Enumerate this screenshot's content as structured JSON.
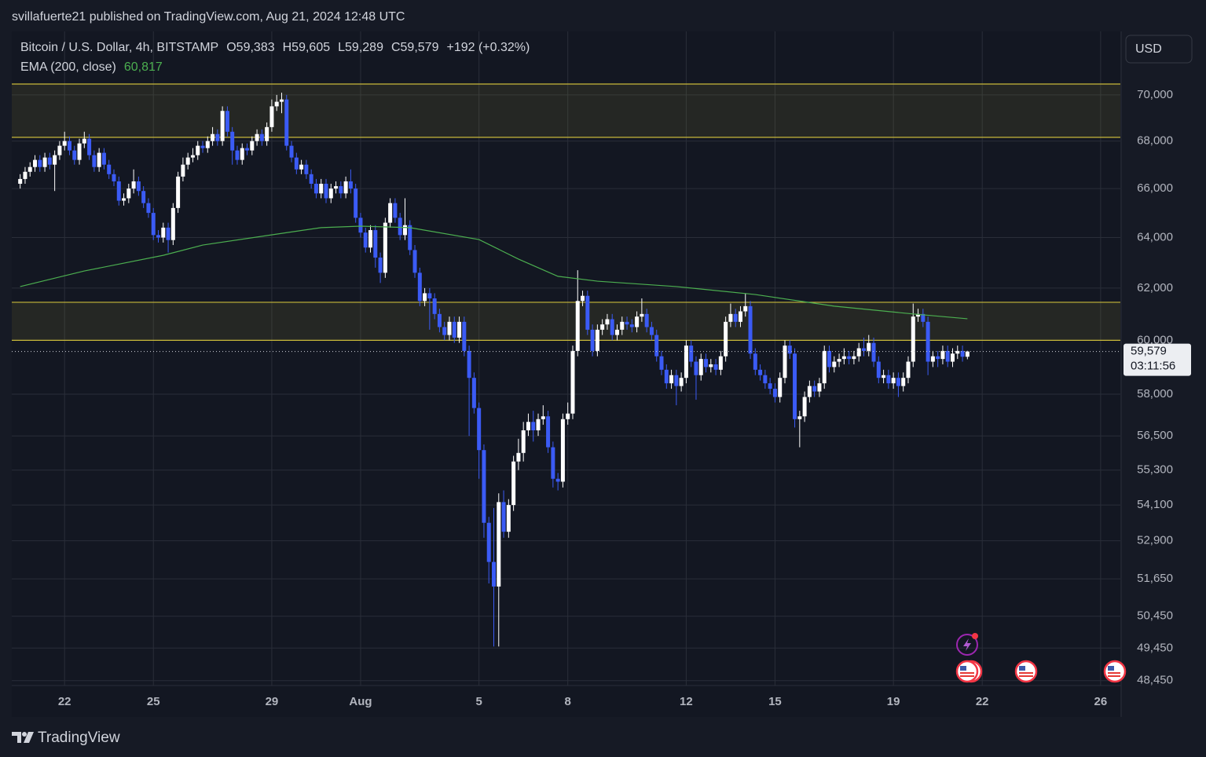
{
  "chart_data": {
    "type": "candlestick",
    "publisher_line": "svillafuerte21 published on TradingView.com, Aug 21, 2024 12:48 UTC",
    "symbol": "Bitcoin / U.S. Dollar, 4h, BITSTAMP",
    "legend_values": [
      "O59,383",
      "H59,605",
      "L59,289",
      "C59,579",
      "+192 (+0.32%)"
    ],
    "currency": "USD",
    "footer": "TradingView",
    "log_scale": true,
    "grid": true,
    "up_color": "#ffffff",
    "down_color": "#3b5bf5",
    "ylim": [
      48300,
      72850
    ],
    "xlim": [
      -1.7,
      223
    ],
    "yticks": [
      {
        "value": 70000,
        "label": "70,000"
      },
      {
        "value": 68000,
        "label": "68,000"
      },
      {
        "value": 66000,
        "label": "66,000"
      },
      {
        "value": 64000,
        "label": "64,000"
      },
      {
        "value": 62000,
        "label": "62,000"
      },
      {
        "value": 60000,
        "label": "60,000"
      },
      {
        "value": 58000,
        "label": "58,000"
      },
      {
        "value": 56500,
        "label": "56,500"
      },
      {
        "value": 55300,
        "label": "55,300"
      },
      {
        "value": 54100,
        "label": "54,100"
      },
      {
        "value": 52900,
        "label": "52,900"
      },
      {
        "value": 51650,
        "label": "51,650"
      },
      {
        "value": 50450,
        "label": "50,450"
      },
      {
        "value": 49450,
        "label": "49,450"
      },
      {
        "value": 48450,
        "label": "48,450"
      }
    ],
    "xticks": [
      {
        "value": 9,
        "label": "22"
      },
      {
        "value": 27,
        "label": "25"
      },
      {
        "value": 51,
        "label": "29"
      },
      {
        "value": 69,
        "label": "Aug"
      },
      {
        "value": 93,
        "label": "5"
      },
      {
        "value": 111,
        "label": "8"
      },
      {
        "value": 135,
        "label": "12"
      },
      {
        "value": 153,
        "label": "15"
      },
      {
        "value": 177,
        "label": "19"
      },
      {
        "value": 195,
        "label": "22"
      },
      {
        "value": 219,
        "label": "26"
      }
    ],
    "zones": [
      [
        60000,
        61450
      ],
      [
        68160,
        70480
      ]
    ],
    "zone_color": "#c9b93a",
    "ema": {
      "name": "EMA (200, close)",
      "value_label": "60,817",
      "color": "#4caf50",
      "x": [
        0,
        13,
        29,
        37,
        52,
        61,
        69,
        79,
        93,
        101,
        109,
        117,
        133,
        149,
        165,
        181,
        192
      ],
      "values": [
        62060,
        62670,
        63290,
        63700,
        64140,
        64400,
        64460,
        64400,
        63920,
        63140,
        62460,
        62270,
        62060,
        61750,
        61300,
        61000,
        60817
      ]
    },
    "last_price": {
      "value": 59579,
      "label": "59,579"
    },
    "countdown": "03:11:56",
    "candles": [
      [
        66200,
        66600,
        66000,
        66400
      ],
      [
        66400,
        66900,
        66200,
        66700
      ],
      [
        66700,
        67100,
        66500,
        66900
      ],
      [
        66900,
        67400,
        66700,
        67200
      ],
      [
        67200,
        67400,
        66700,
        66900
      ],
      [
        66900,
        67500,
        66700,
        67300
      ],
      [
        67300,
        67500,
        66800,
        67000
      ],
      [
        67000,
        67600,
        65900,
        67400
      ],
      [
        67400,
        68000,
        67200,
        67800
      ],
      [
        67800,
        68400,
        67600,
        68000
      ],
      [
        68000,
        68200,
        67400,
        67600
      ],
      [
        67600,
        67800,
        67000,
        67200
      ],
      [
        67200,
        68100,
        67000,
        67900
      ],
      [
        67900,
        68400,
        67700,
        68100
      ],
      [
        68100,
        68300,
        67200,
        67400
      ],
      [
        67400,
        67600,
        66700,
        66900
      ],
      [
        66900,
        67700,
        66700,
        67500
      ],
      [
        67500,
        67700,
        66800,
        67000
      ],
      [
        67000,
        67200,
        66400,
        66600
      ],
      [
        66600,
        66800,
        66100,
        66300
      ],
      [
        66300,
        66500,
        65300,
        65500
      ],
      [
        65500,
        65800,
        65300,
        65600
      ],
      [
        65600,
        66200,
        65400,
        66000
      ],
      [
        66000,
        66800,
        65800,
        66300
      ],
      [
        66300,
        66500,
        65700,
        65900
      ],
      [
        65900,
        66100,
        65200,
        65400
      ],
      [
        65400,
        65600,
        64800,
        65000
      ],
      [
        65000,
        65200,
        63900,
        64100
      ],
      [
        64100,
        64300,
        63800,
        64000
      ],
      [
        64000,
        64600,
        63800,
        64400
      ],
      [
        64400,
        64600,
        63400,
        63900
      ],
      [
        63900,
        65400,
        63700,
        65200
      ],
      [
        65200,
        66700,
        65000,
        66500
      ],
      [
        66500,
        67300,
        66300,
        67000
      ],
      [
        67000,
        67500,
        66800,
        67300
      ],
      [
        67300,
        67700,
        67100,
        67400
      ],
      [
        67400,
        68000,
        67200,
        67800
      ],
      [
        67800,
        68000,
        67500,
        67700
      ],
      [
        67700,
        68200,
        67500,
        68000
      ],
      [
        68000,
        68600,
        67800,
        68300
      ],
      [
        68300,
        68500,
        67800,
        68000
      ],
      [
        68000,
        69500,
        67800,
        69300
      ],
      [
        69300,
        69500,
        68200,
        68400
      ],
      [
        68400,
        68600,
        67000,
        67600
      ],
      [
        67600,
        67800,
        67000,
        67200
      ],
      [
        67200,
        67900,
        67000,
        67700
      ],
      [
        67700,
        67900,
        67400,
        67600
      ],
      [
        67600,
        68200,
        67400,
        68000
      ],
      [
        68000,
        68500,
        67800,
        68300
      ],
      [
        68300,
        68500,
        67800,
        68000
      ],
      [
        68000,
        68800,
        67800,
        68600
      ],
      [
        68600,
        69800,
        68400,
        69500
      ],
      [
        69500,
        70000,
        69300,
        69700
      ],
      [
        69700,
        70100,
        69200,
        69800
      ],
      [
        69800,
        70000,
        67600,
        67800
      ],
      [
        67800,
        68000,
        67100,
        67300
      ],
      [
        67300,
        67500,
        66600,
        66800
      ],
      [
        66800,
        67200,
        66600,
        67000
      ],
      [
        67000,
        67200,
        66400,
        66600
      ],
      [
        66600,
        66800,
        66000,
        66200
      ],
      [
        66200,
        66400,
        65600,
        65800
      ],
      [
        65800,
        66400,
        65600,
        66200
      ],
      [
        66200,
        66400,
        65400,
        65600
      ],
      [
        65600,
        66200,
        65400,
        66000
      ],
      [
        66000,
        66300,
        65800,
        66100
      ],
      [
        66100,
        66300,
        65600,
        65800
      ],
      [
        65800,
        66500,
        65600,
        66300
      ],
      [
        66300,
        66800,
        65800,
        66000
      ],
      [
        66000,
        66200,
        64600,
        64800
      ],
      [
        64800,
        65000,
        64000,
        64200
      ],
      [
        64200,
        64400,
        63400,
        63600
      ],
      [
        63600,
        64500,
        63400,
        64300
      ],
      [
        64300,
        64500,
        62800,
        63200
      ],
      [
        63200,
        63400,
        62200,
        62600
      ],
      [
        62600,
        64800,
        62400,
        64600
      ],
      [
        64600,
        65600,
        64400,
        65400
      ],
      [
        65400,
        65600,
        64600,
        64800
      ],
      [
        64800,
        65000,
        63900,
        64100
      ],
      [
        64100,
        65600,
        63900,
        64500
      ],
      [
        64500,
        64700,
        63300,
        63500
      ],
      [
        63500,
        63700,
        62400,
        62600
      ],
      [
        62600,
        62800,
        61300,
        61500
      ],
      [
        61500,
        62000,
        61300,
        61800
      ],
      [
        61800,
        62000,
        60400,
        61600
      ],
      [
        61600,
        61800,
        60800,
        61000
      ],
      [
        61000,
        61200,
        60300,
        60500
      ],
      [
        60500,
        60700,
        60000,
        60200
      ],
      [
        60200,
        60900,
        60000,
        60700
      ],
      [
        60700,
        60900,
        59900,
        60100
      ],
      [
        60100,
        60900,
        59900,
        60700
      ],
      [
        60700,
        60900,
        59400,
        59600
      ],
      [
        59600,
        59800,
        56500,
        58600
      ],
      [
        58600,
        58800,
        57300,
        57500
      ],
      [
        57500,
        57700,
        55000,
        56000
      ],
      [
        56000,
        56200,
        53000,
        53500
      ],
      [
        53500,
        53700,
        51500,
        52200
      ],
      [
        52200,
        54000,
        49500,
        51400
      ],
      [
        51400,
        54500,
        49500,
        54200
      ],
      [
        54200,
        54600,
        53000,
        53200
      ],
      [
        53200,
        54300,
        53000,
        54100
      ],
      [
        54100,
        55800,
        53900,
        55600
      ],
      [
        55600,
        56400,
        55300,
        55900
      ],
      [
        55900,
        57000,
        55600,
        56700
      ],
      [
        56700,
        57300,
        56500,
        57000
      ],
      [
        57000,
        57400,
        56300,
        56700
      ],
      [
        56700,
        57300,
        56500,
        57100
      ],
      [
        57100,
        57600,
        56900,
        57200
      ],
      [
        57200,
        57400,
        55900,
        56100
      ],
      [
        56100,
        56300,
        54700,
        55000
      ],
      [
        55000,
        55200,
        54600,
        54900
      ],
      [
        54900,
        57300,
        54700,
        57100
      ],
      [
        57100,
        57700,
        56900,
        57300
      ],
      [
        57300,
        59800,
        57100,
        59600
      ],
      [
        59600,
        62700,
        59400,
        61500
      ],
      [
        61500,
        61900,
        61300,
        61700
      ],
      [
        61700,
        61900,
        60200,
        60400
      ],
      [
        60400,
        60600,
        59400,
        59600
      ],
      [
        59600,
        60600,
        59400,
        60400
      ],
      [
        60400,
        60800,
        60200,
        60600
      ],
      [
        60600,
        61000,
        60400,
        60800
      ],
      [
        60800,
        61000,
        60000,
        60200
      ],
      [
        60200,
        60600,
        60000,
        60400
      ],
      [
        60400,
        60900,
        60200,
        60700
      ],
      [
        60700,
        60900,
        60400,
        60600
      ],
      [
        60600,
        60800,
        60300,
        60500
      ],
      [
        60500,
        61100,
        60300,
        60900
      ],
      [
        60900,
        61600,
        60700,
        61000
      ],
      [
        61000,
        61200,
        60300,
        60500
      ],
      [
        60500,
        60700,
        60000,
        60200
      ],
      [
        60200,
        60400,
        59200,
        59400
      ],
      [
        59400,
        59600,
        58700,
        58900
      ],
      [
        58900,
        59100,
        58200,
        58400
      ],
      [
        58400,
        58900,
        58200,
        58700
      ],
      [
        58700,
        58900,
        57600,
        58300
      ],
      [
        58300,
        58800,
        58100,
        58600
      ],
      [
        58600,
        60000,
        58400,
        59800
      ],
      [
        59800,
        60000,
        59000,
        59200
      ],
      [
        59200,
        59400,
        57800,
        58700
      ],
      [
        58700,
        59500,
        58500,
        59300
      ],
      [
        59300,
        59500,
        58800,
        59000
      ],
      [
        59000,
        59300,
        58800,
        59100
      ],
      [
        59100,
        59300,
        58700,
        58900
      ],
      [
        58900,
        59600,
        58700,
        59400
      ],
      [
        59400,
        60900,
        59200,
        60700
      ],
      [
        60700,
        61400,
        60500,
        61000
      ],
      [
        61000,
        61200,
        60500,
        60700
      ],
      [
        60700,
        61300,
        60500,
        61100
      ],
      [
        61100,
        61800,
        60900,
        61300
      ],
      [
        61300,
        61500,
        59300,
        59500
      ],
      [
        59500,
        59700,
        58700,
        58900
      ],
      [
        58900,
        59100,
        58500,
        58700
      ],
      [
        58700,
        58900,
        58200,
        58400
      ],
      [
        58400,
        58600,
        58000,
        58200
      ],
      [
        58200,
        58400,
        57700,
        57900
      ],
      [
        57900,
        58800,
        57700,
        58600
      ],
      [
        58600,
        60000,
        58400,
        59800
      ],
      [
        59800,
        60000,
        59300,
        59500
      ],
      [
        59500,
        59700,
        56800,
        57100
      ],
      [
        57100,
        57400,
        56100,
        57200
      ],
      [
        57200,
        58100,
        57000,
        57900
      ],
      [
        57900,
        58500,
        57700,
        58300
      ],
      [
        58300,
        58500,
        57900,
        58100
      ],
      [
        58100,
        58600,
        57900,
        58400
      ],
      [
        58400,
        59800,
        58200,
        59600
      ],
      [
        59600,
        59800,
        58800,
        59000
      ],
      [
        59000,
        59400,
        58800,
        59200
      ],
      [
        59200,
        59500,
        59000,
        59300
      ],
      [
        59300,
        59700,
        59100,
        59400
      ],
      [
        59400,
        59600,
        59100,
        59300
      ],
      [
        59300,
        59600,
        59100,
        59400
      ],
      [
        59400,
        59900,
        59200,
        59700
      ],
      [
        59700,
        60100,
        59400,
        59600
      ],
      [
        59600,
        60200,
        59400,
        59900
      ],
      [
        59900,
        60100,
        59000,
        59200
      ],
      [
        59200,
        59400,
        58400,
        58600
      ],
      [
        58600,
        58900,
        58400,
        58700
      ],
      [
        58700,
        58900,
        58200,
        58400
      ],
      [
        58400,
        58800,
        58200,
        58600
      ],
      [
        58600,
        58800,
        57900,
        58300
      ],
      [
        58300,
        58800,
        58100,
        58600
      ],
      [
        58600,
        59400,
        58400,
        59200
      ],
      [
        59200,
        61400,
        59000,
        60900
      ],
      [
        60900,
        61200,
        60700,
        61000
      ],
      [
        61000,
        61200,
        60500,
        60700
      ],
      [
        60700,
        60900,
        58700,
        59200
      ],
      [
        59200,
        59600,
        59000,
        59400
      ],
      [
        59400,
        59600,
        59000,
        59300
      ],
      [
        59300,
        59800,
        59100,
        59600
      ],
      [
        59600,
        59800,
        59000,
        59200
      ],
      [
        59200,
        59700,
        59000,
        59500
      ],
      [
        59500,
        59800,
        59300,
        59600
      ],
      [
        59600,
        59800,
        59200,
        59383
      ],
      [
        59383,
        59605,
        59289,
        59579
      ]
    ]
  }
}
